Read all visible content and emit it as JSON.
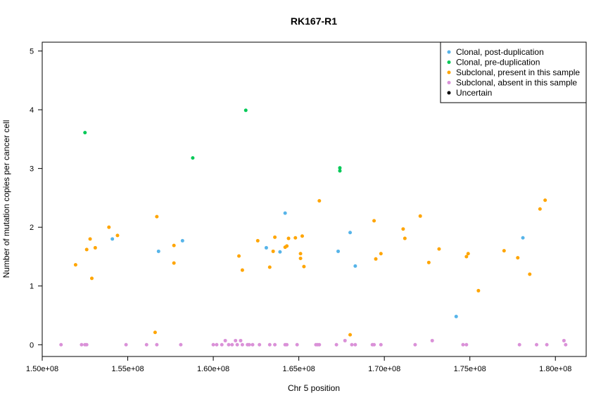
{
  "chart_data": {
    "type": "scatter",
    "title": "RK167-R1",
    "xlabel": "Chr 5 position",
    "ylabel": "Number of mutation copies per cancer cell",
    "xlim": [
      150000000,
      181800000
    ],
    "ylim": [
      -0.2,
      5.15
    ],
    "x_ticks": [
      150000000,
      155000000,
      160000000,
      165000000,
      170000000,
      175000000,
      180000000
    ],
    "x_tick_labels": [
      "1.50e+08",
      "1.55e+08",
      "1.60e+08",
      "1.65e+08",
      "1.70e+08",
      "1.75e+08",
      "1.80e+08"
    ],
    "y_ticks": [
      0,
      1,
      2,
      3,
      4,
      5
    ],
    "y_tick_labels": [
      "0",
      "1",
      "2",
      "3",
      "4",
      "5"
    ],
    "legend_position": "top-right",
    "series": [
      {
        "name": "Clonal, post-duplication",
        "color": "#56B4E9",
        "points": [
          [
            154100000,
            1.8
          ],
          [
            156800000,
            1.59
          ],
          [
            158200000,
            1.77
          ],
          [
            163100000,
            1.65
          ],
          [
            163900000,
            1.58
          ],
          [
            164200000,
            2.24
          ],
          [
            167300000,
            1.59
          ],
          [
            168000000,
            1.91
          ],
          [
            168300000,
            1.34
          ],
          [
            174200000,
            0.48
          ],
          [
            178100000,
            1.82
          ]
        ]
      },
      {
        "name": "Clonal, pre-duplication",
        "color": "#00C957",
        "points": [
          [
            152500000,
            3.61
          ],
          [
            158800000,
            3.18
          ],
          [
            161900000,
            3.99
          ],
          [
            167400000,
            3.01
          ],
          [
            167400000,
            2.96
          ]
        ]
      },
      {
        "name": "Subclonal, present in this sample",
        "color": "#FFA500",
        "points": [
          [
            151950000,
            1.36
          ],
          [
            152600000,
            1.62
          ],
          [
            152800000,
            1.8
          ],
          [
            152900000,
            1.13
          ],
          [
            153100000,
            1.65
          ],
          [
            153900000,
            2.0
          ],
          [
            154400000,
            1.86
          ],
          [
            156600000,
            0.21
          ],
          [
            156700000,
            2.18
          ],
          [
            157700000,
            1.69
          ],
          [
            157700000,
            1.39
          ],
          [
            161500000,
            1.51
          ],
          [
            161700000,
            1.27
          ],
          [
            162600000,
            1.77
          ],
          [
            163300000,
            1.32
          ],
          [
            163500000,
            1.59
          ],
          [
            163600000,
            1.83
          ],
          [
            164200000,
            1.66
          ],
          [
            164300000,
            1.68
          ],
          [
            164400000,
            1.81
          ],
          [
            164800000,
            1.82
          ],
          [
            165100000,
            1.55
          ],
          [
            165100000,
            1.47
          ],
          [
            165200000,
            1.85
          ],
          [
            165300000,
            1.33
          ],
          [
            166200000,
            2.45
          ],
          [
            168000000,
            0.17
          ],
          [
            169400000,
            2.11
          ],
          [
            169500000,
            1.46
          ],
          [
            169800000,
            1.55
          ],
          [
            171100000,
            1.97
          ],
          [
            171200000,
            1.81
          ],
          [
            172100000,
            2.19
          ],
          [
            172600000,
            1.4
          ],
          [
            173200000,
            1.63
          ],
          [
            174800000,
            1.5
          ],
          [
            174900000,
            1.55
          ],
          [
            175500000,
            0.92
          ],
          [
            177000000,
            1.6
          ],
          [
            177800000,
            1.48
          ],
          [
            178500000,
            1.2
          ],
          [
            179100000,
            2.31
          ],
          [
            179400000,
            2.46
          ]
        ]
      },
      {
        "name": "Subclonal, absent in this sample",
        "color": "#DA91D8",
        "points": [
          [
            151100000,
            0.0
          ],
          [
            152300000,
            0.0
          ],
          [
            152500000,
            0.0
          ],
          [
            152600000,
            0.0
          ],
          [
            154900000,
            0.0
          ],
          [
            156100000,
            0.0
          ],
          [
            156700000,
            0.0
          ],
          [
            158100000,
            0.0
          ],
          [
            160000000,
            0.0
          ],
          [
            160200000,
            0.0
          ],
          [
            160500000,
            0.0
          ],
          [
            160700000,
            0.07
          ],
          [
            160900000,
            0.0
          ],
          [
            161100000,
            0.0
          ],
          [
            161300000,
            0.07
          ],
          [
            161400000,
            0.0
          ],
          [
            161600000,
            0.07
          ],
          [
            161700000,
            0.0
          ],
          [
            162000000,
            0.0
          ],
          [
            162100000,
            0.0
          ],
          [
            162300000,
            0.0
          ],
          [
            162700000,
            0.0
          ],
          [
            163300000,
            0.0
          ],
          [
            163600000,
            0.0
          ],
          [
            164200000,
            0.0
          ],
          [
            164300000,
            0.0
          ],
          [
            164900000,
            0.0
          ],
          [
            166000000,
            0.0
          ],
          [
            166100000,
            0.0
          ],
          [
            166200000,
            0.0
          ],
          [
            167200000,
            0.0
          ],
          [
            167700000,
            0.07
          ],
          [
            168100000,
            0.0
          ],
          [
            168300000,
            0.0
          ],
          [
            169300000,
            0.0
          ],
          [
            169400000,
            0.0
          ],
          [
            169800000,
            0.0
          ],
          [
            171800000,
            0.0
          ],
          [
            172800000,
            0.07
          ],
          [
            174600000,
            0.0
          ],
          [
            174800000,
            0.0
          ],
          [
            177900000,
            0.0
          ],
          [
            178900000,
            0.0
          ],
          [
            179500000,
            0.0
          ],
          [
            180500000,
            0.07
          ],
          [
            180600000,
            0.0
          ]
        ]
      },
      {
        "name": "Uncertain",
        "color": "#000000",
        "points": []
      }
    ]
  }
}
